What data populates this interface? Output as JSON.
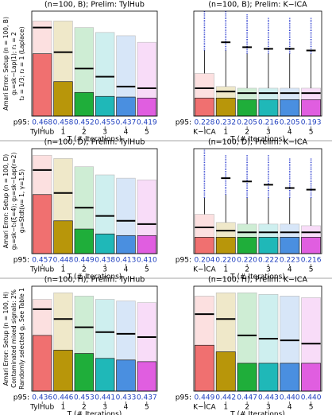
{
  "row_labels": [
    [
      "Amari Error: Setup (n = 100, B)",
      "g₁=sk−Lap(1); r₁ = 2",
      "t₂ = 1/3; r₂ = 1 (Laplace)"
    ],
    [
      "Amari Error: Setup (n = 100, D)",
      "g₁=sk−t₅(ξ=4); g₂=sk−Lap(r=2)",
      "g₃=Stdt(ν= 1, γ=1.5)"
    ],
    [
      "Amari Error: Setup (n = 100, H)",
      "Contaminated mixed signals: 2%",
      "Randomly selected gⱼ. See Table 1"
    ]
  ],
  "chart_data": [
    {
      "type": "box",
      "title": "(n=100, B);  Prelim: TylHub",
      "categories": [
        "TylHub",
        "1",
        "2",
        "3",
        "4",
        "5"
      ],
      "xlabel": "T (# Iterations)",
      "colors": [
        "#f07070",
        "#b8960a",
        "#1fae3a",
        "#1fb8b8",
        "#4a8fe0",
        "#e05ee0"
      ],
      "ylim": [
        0,
        0.32
      ],
      "lower": [
        0.19,
        0.105,
        0.072,
        0.06,
        0.058,
        0.055
      ],
      "line": [
        0.27,
        0.195,
        0.145,
        0.12,
        0.09,
        0.085
      ],
      "upper": [
        0.29,
        0.29,
        0.27,
        0.255,
        0.245,
        0.225
      ],
      "p95_label": "p95:",
      "p95_values": [
        "0.468",
        "0.458",
        "0.452",
        "0.455",
        "0.437",
        "0.419"
      ]
    },
    {
      "type": "box",
      "title": "(n=100, B);  Prelim: K−ICA",
      "categories": [
        "K−ICA",
        "1",
        "2",
        "3",
        "4",
        "5"
      ],
      "xlabel": "T (# Iterations)",
      "colors": [
        "#f07070",
        "#b8960a",
        "#1fae3a",
        "#1fb8b8",
        "#4a8fe0",
        "#e05ee0"
      ],
      "ylim": [
        0,
        0.32
      ],
      "lower": [
        0.055,
        0.055,
        0.05,
        0.05,
        0.05,
        0.05
      ],
      "line": [
        0.085,
        0.075,
        0.07,
        0.07,
        0.07,
        0.07
      ],
      "upper": [
        0.13,
        0.09,
        0.085,
        0.085,
        0.085,
        0.085
      ],
      "whisker": [
        0.2,
        0.2,
        0.19,
        0.19,
        0.19,
        0.19
      ],
      "outlier_top": [
        0.32,
        0.32,
        0.31,
        0.3,
        0.3,
        0.3
      ],
      "dash": [
        null,
        0.225,
        0.21,
        0.205,
        0.205,
        0.2
      ],
      "p95_label": "p95:",
      "p95_values": [
        "0.228",
        "0.232",
        "0.205",
        "0.216",
        "0.205",
        "0.193"
      ]
    },
    {
      "type": "box",
      "title": "(n=100, D);  Prelim: TylHub",
      "categories": [
        "TylHub",
        "1",
        "2",
        "3",
        "4",
        "5"
      ],
      "xlabel": "T (# Iterations)",
      "colors": [
        "#f07070",
        "#b8960a",
        "#1fae3a",
        "#1fb8b8",
        "#4a8fe0",
        "#e05ee0"
      ],
      "ylim": [
        0,
        0.32
      ],
      "lower": [
        0.18,
        0.1,
        0.075,
        0.06,
        0.055,
        0.055
      ],
      "line": [
        0.255,
        0.185,
        0.14,
        0.115,
        0.1,
        0.09
      ],
      "upper": [
        0.3,
        0.29,
        0.265,
        0.24,
        0.23,
        0.225
      ],
      "p95_label": "p95:",
      "p95_values": [
        "0.457",
        "0.448",
        "0.449",
        "0.438",
        "0.413",
        "0.410"
      ]
    },
    {
      "type": "box",
      "title": "(n=100, D);  Prelim: K−ICA",
      "categories": [
        "K−ICA",
        "1",
        "2",
        "3",
        "4",
        "5"
      ],
      "xlabel": "T (# Iterations)",
      "colors": [
        "#f07070",
        "#b8960a",
        "#1fae3a",
        "#1fb8b8",
        "#4a8fe0",
        "#e05ee0"
      ],
      "ylim": [
        0,
        0.32
      ],
      "lower": [
        0.05,
        0.05,
        0.05,
        0.05,
        0.05,
        0.05
      ],
      "line": [
        0.08,
        0.07,
        0.065,
        0.065,
        0.065,
        0.065
      ],
      "upper": [
        0.12,
        0.095,
        0.09,
        0.09,
        0.09,
        0.085
      ],
      "whisker": [
        0.17,
        0.18,
        0.17,
        0.17,
        0.17,
        0.17
      ],
      "outlier_top": [
        0.32,
        0.3,
        0.3,
        0.3,
        0.29,
        0.29
      ],
      "dash": [
        null,
        0.23,
        0.22,
        0.21,
        0.2,
        0.195
      ],
      "p95_label": "p95:",
      "p95_values": [
        "0.204",
        "0.220",
        "0.220",
        "0.222",
        "0.223",
        "0.216"
      ]
    },
    {
      "type": "box",
      "title": "(n=100, H);  Prelim: TylHub",
      "categories": [
        "TylHub",
        "1",
        "2",
        "3",
        "4",
        "5"
      ],
      "xlabel": "T (# Iterations)",
      "colors": [
        "#f07070",
        "#b8960a",
        "#1fae3a",
        "#1fb8b8",
        "#4a8fe0",
        "#e05ee0"
      ],
      "ylim": [
        0,
        0.32
      ],
      "lower": [
        0.17,
        0.125,
        0.115,
        0.1,
        0.095,
        0.09
      ],
      "line": [
        0.25,
        0.22,
        0.195,
        0.18,
        0.175,
        0.165
      ],
      "upper": [
        0.28,
        0.3,
        0.29,
        0.28,
        0.275,
        0.27
      ],
      "p95_label": "p95:",
      "p95_values": [
        "0.436",
        "0.446",
        "0.453",
        "0.441",
        "0.433",
        "0.437"
      ]
    },
    {
      "type": "box",
      "title": "(n=100, H);  Prelim: K−ICA",
      "categories": [
        "K−ICA",
        "1",
        "2",
        "3",
        "4",
        "5"
      ],
      "xlabel": "T (# Iterations)",
      "colors": [
        "#f07070",
        "#b8960a",
        "#1fae3a",
        "#1fb8b8",
        "#4a8fe0",
        "#e05ee0"
      ],
      "ylim": [
        0,
        0.32
      ],
      "lower": [
        0.14,
        0.12,
        0.085,
        0.085,
        0.085,
        0.085
      ],
      "line": [
        0.235,
        0.22,
        0.17,
        0.16,
        0.155,
        0.145
      ],
      "upper": [
        0.29,
        0.3,
        0.3,
        0.295,
        0.29,
        0.285
      ],
      "p95_label": "p95:",
      "p95_values": [
        "0.449",
        "0.442",
        "0.447",
        "0.443",
        "0.440",
        "0.440"
      ]
    }
  ]
}
